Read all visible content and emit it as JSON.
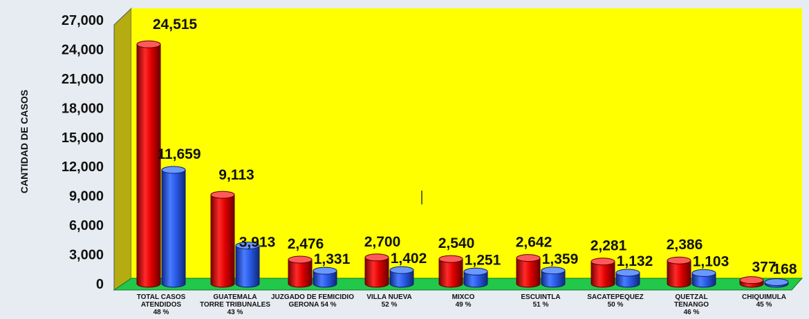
{
  "chart_data": {
    "type": "bar",
    "title": "",
    "xlabel": "",
    "ylabel": "CANTIDAD DE CASOS",
    "ylim": [
      0,
      27000
    ],
    "yticks": [
      "0",
      "3,000",
      "6,000",
      "9,000",
      "12,000",
      "15,000",
      "18,000",
      "21,000",
      "24,000",
      "27,000"
    ],
    "ytick_values": [
      0,
      3000,
      6000,
      9000,
      12000,
      15000,
      18000,
      21000,
      24000,
      27000
    ],
    "categories": [
      [
        "TOTAL CASOS",
        "ATENDIDOS",
        "48 %"
      ],
      [
        "GUATEMALA",
        "TORRE TRIBUNALES",
        "43 %"
      ],
      [
        "JUZGADO DE FEMICIDIO",
        "GERONA 54 %"
      ],
      [
        "VILLA NUEVA",
        "52 %"
      ],
      [
        "MIXCO",
        "49 %"
      ],
      [
        "ESCUINTLA",
        "51 %"
      ],
      [
        "SACATEPEQUEZ",
        "50 %"
      ],
      [
        "QUETZAL",
        "TENANGO",
        "46 %"
      ],
      [
        "CHIQUIMULA",
        "45 %"
      ]
    ],
    "series": [
      {
        "values": [
          24515,
          9113,
          2476,
          2700,
          2540,
          2642,
          2281,
          2386,
          377
        ],
        "labels": [
          "24,515",
          "9,113",
          "2,476",
          "2,700",
          "2,540",
          "2,642",
          "2,281",
          "2,386",
          "377"
        ]
      },
      {
        "values": [
          11659,
          3913,
          1331,
          1402,
          1251,
          1359,
          1132,
          1103,
          168
        ],
        "labels": [
          "11,659",
          "3,913",
          "1,331",
          "1,402",
          "1,251",
          "1,359",
          "1,132",
          "1,103",
          "168"
        ]
      }
    ],
    "grid": false,
    "colors": {
      "series1": "#e01010",
      "series2": "#2a5ae8",
      "wall": "#ffff00",
      "floor": "#22c84a",
      "side_wall": "#b4ac10"
    }
  }
}
